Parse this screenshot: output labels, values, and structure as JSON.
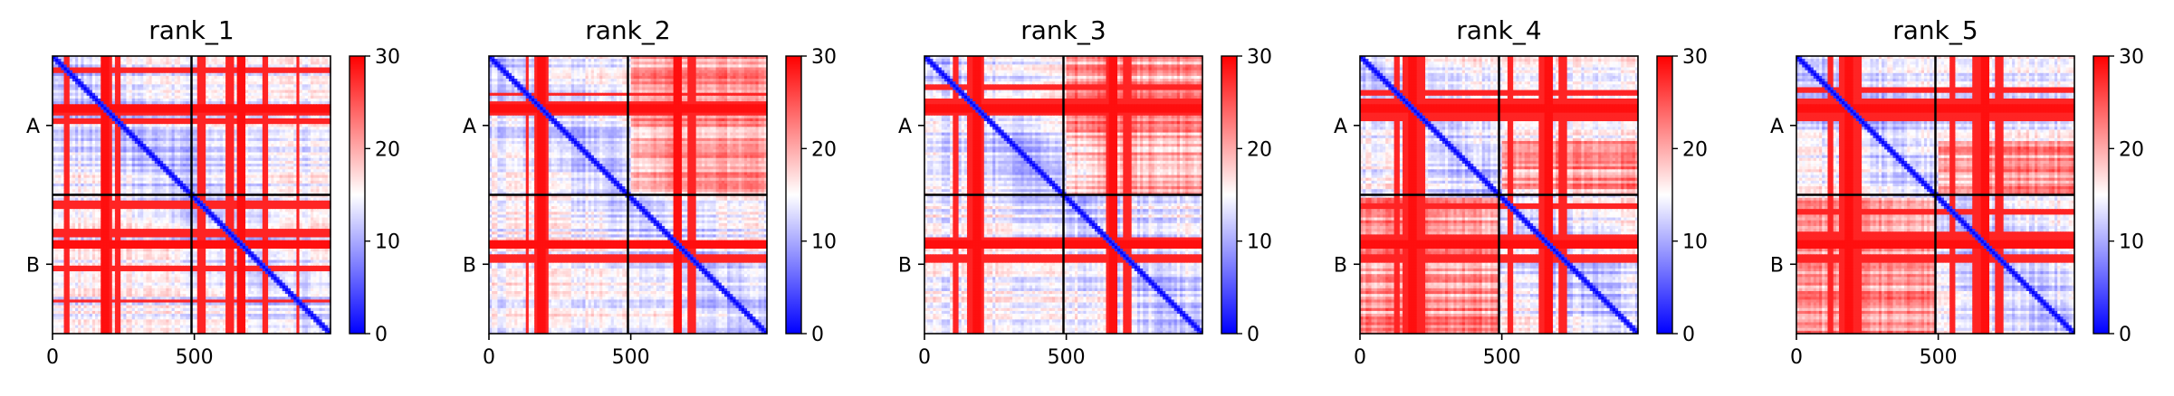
{
  "figure": {
    "colormap": {
      "low": "#0000ff",
      "mid": "#ffffff",
      "high": "#ff0000"
    }
  },
  "chart_data": [
    {
      "type": "heatmap",
      "title": "rank_1",
      "x_ticks": [
        "0",
        "500"
      ],
      "x_tick_values": [
        0,
        500
      ],
      "y_ticks": [
        "A",
        "B"
      ],
      "chain_boundary": 490,
      "xlim": [
        0,
        980
      ],
      "colorbar": {
        "min": 0,
        "max": 30,
        "ticks": [
          "0",
          "10",
          "20",
          "30"
        ]
      },
      "high_rows": [
        [
          45,
          60
        ],
        [
          180,
          210
        ],
        [
          225,
          235
        ],
        [
          515,
          535
        ],
        [
          615,
          640
        ],
        [
          740,
          760
        ],
        [
          860,
          870
        ]
      ],
      "high_cols": [
        [
          175,
          200
        ],
        [
          650,
          680
        ]
      ],
      "warm_blocks": []
    },
    {
      "type": "heatmap",
      "title": "rank_2",
      "x_ticks": [
        "0",
        "500"
      ],
      "x_tick_values": [
        0,
        500
      ],
      "y_ticks": [
        "A",
        "B"
      ],
      "chain_boundary": 490,
      "xlim": [
        0,
        980
      ],
      "colorbar": {
        "min": 0,
        "max": 30,
        "ticks": [
          "0",
          "10",
          "20",
          "30"
        ]
      },
      "high_rows": [
        [
          130,
          140
        ],
        [
          160,
          205
        ],
        [
          650,
          670
        ],
        [
          705,
          725
        ]
      ],
      "high_cols": [
        [
          175,
          200
        ],
        [
          650,
          680
        ]
      ],
      "warm_blocks": [
        [
          0,
          490,
          500,
          980
        ]
      ]
    },
    {
      "type": "heatmap",
      "title": "rank_3",
      "x_ticks": [
        "0",
        "500"
      ],
      "x_tick_values": [
        0,
        500
      ],
      "y_ticks": [
        "A",
        "B"
      ],
      "chain_boundary": 490,
      "xlim": [
        0,
        980
      ],
      "colorbar": {
        "min": 0,
        "max": 30,
        "ticks": [
          "0",
          "10",
          "20",
          "30"
        ]
      },
      "high_rows": [
        [
          100,
          120
        ],
        [
          150,
          175
        ],
        [
          185,
          210
        ],
        [
          640,
          660
        ],
        [
          700,
          725
        ]
      ],
      "high_cols": [
        [
          175,
          200
        ],
        [
          650,
          680
        ]
      ],
      "warm_blocks": [
        [
          0,
          490,
          500,
          980
        ]
      ]
    },
    {
      "type": "heatmap",
      "title": "rank_4",
      "x_ticks": [
        "0",
        "500"
      ],
      "x_tick_values": [
        0,
        500
      ],
      "y_ticks": [
        "A",
        "B"
      ],
      "chain_boundary": 490,
      "xlim": [
        0,
        980
      ],
      "colorbar": {
        "min": 0,
        "max": 30,
        "ticks": [
          "0",
          "10",
          "20",
          "30"
        ]
      },
      "high_rows": [
        [
          120,
          135
        ],
        [
          150,
          180
        ],
        [
          200,
          225
        ],
        [
          520,
          540
        ],
        [
          630,
          660
        ],
        [
          700,
          730
        ]
      ],
      "high_cols": [
        [
          175,
          200
        ],
        [
          650,
          680
        ]
      ],
      "warm_blocks": [
        [
          300,
          490,
          500,
          980
        ],
        [
          500,
          980,
          0,
          490
        ]
      ]
    },
    {
      "type": "heatmap",
      "title": "rank_5",
      "x_ticks": [
        "0",
        "500"
      ],
      "x_tick_values": [
        0,
        500
      ],
      "y_ticks": [
        "A",
        "B"
      ],
      "chain_boundary": 490,
      "xlim": [
        0,
        980
      ],
      "colorbar": {
        "min": 0,
        "max": 30,
        "ticks": [
          "0",
          "10",
          "20",
          "30"
        ]
      },
      "high_rows": [
        [
          110,
          125
        ],
        [
          150,
          180
        ],
        [
          200,
          225
        ],
        [
          540,
          560
        ],
        [
          620,
          650
        ],
        [
          700,
          730
        ]
      ],
      "high_cols": [
        [
          175,
          200
        ],
        [
          650,
          680
        ]
      ],
      "warm_blocks": [
        [
          300,
          490,
          500,
          980
        ],
        [
          500,
          980,
          0,
          490
        ]
      ]
    }
  ]
}
